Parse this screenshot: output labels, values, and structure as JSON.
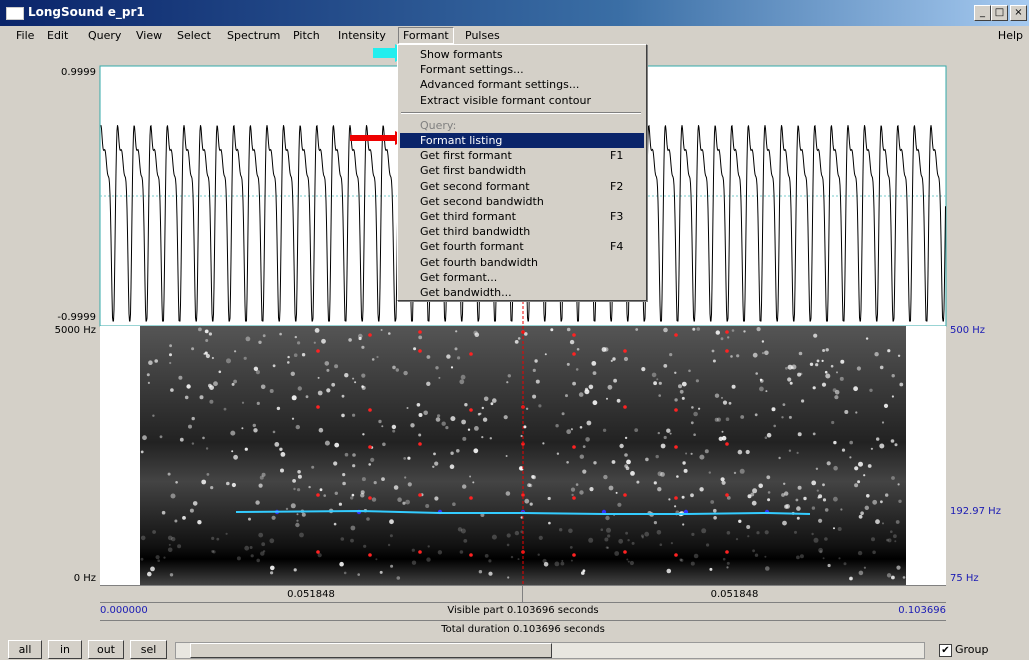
{
  "window": {
    "title": "LongSound e_pr1"
  },
  "menu": {
    "items": [
      "File",
      "Edit",
      "Query",
      "View",
      "Select",
      "Spectrum",
      "Pitch",
      "Intensity",
      "Formant",
      "Pulses"
    ],
    "help": "Help"
  },
  "dropdown": {
    "items": [
      {
        "label": "Show formants"
      },
      {
        "label": "Formant settings..."
      },
      {
        "label": "Advanced formant settings..."
      },
      {
        "label": "Extract visible formant contour"
      },
      {
        "label": "Query:"
      },
      {
        "label": "Formant listing"
      },
      {
        "label": "Get first formant",
        "shortcut": "F1"
      },
      {
        "label": "Get first bandwidth"
      },
      {
        "label": "Get second formant",
        "shortcut": "F2"
      },
      {
        "label": "Get second bandwidth"
      },
      {
        "label": "Get third formant",
        "shortcut": "F3"
      },
      {
        "label": "Get third bandwidth"
      },
      {
        "label": "Get fourth formant",
        "shortcut": "F4"
      },
      {
        "label": "Get fourth bandwidth"
      },
      {
        "label": "Get formant..."
      },
      {
        "label": "Get bandwidth..."
      }
    ]
  },
  "waveform": {
    "top_label": "0.9999",
    "bottom_label": "-0.9999"
  },
  "spectrogram": {
    "left_top": "5000 Hz",
    "left_bottom": "0 Hz",
    "right_top": "500 Hz",
    "right_mid": "192.97 Hz",
    "right_bottom": "75 Hz"
  },
  "timebar": {
    "left_half": "0.051848",
    "right_half": "0.051848",
    "start": "0.000000",
    "visible": "Visible part 0.103696 seconds",
    "end": "0.103696",
    "total": "Total duration 0.103696 seconds"
  },
  "buttons": [
    "all",
    "in",
    "out",
    "sel"
  ],
  "group": "Group"
}
